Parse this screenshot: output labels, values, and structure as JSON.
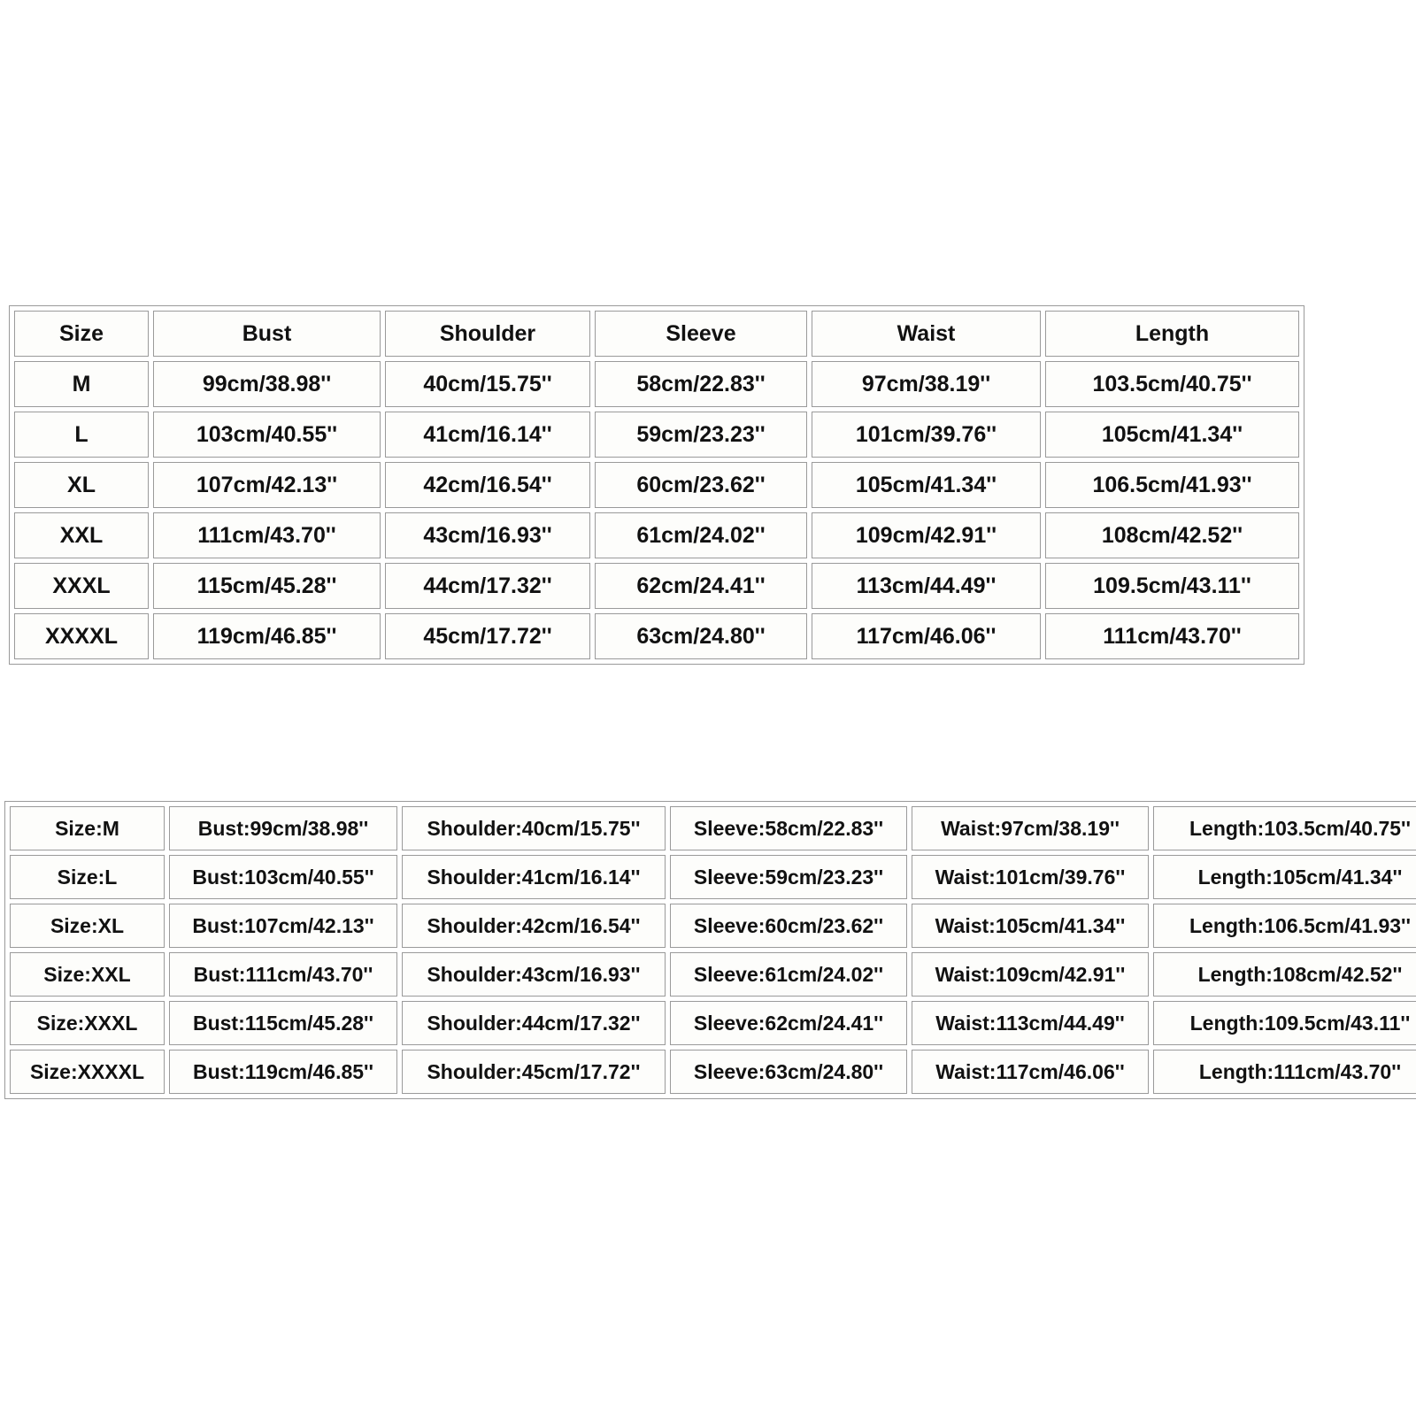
{
  "colors": {
    "page_background": "#ffffff",
    "cell_background": "#fdfdfb",
    "border": "#9a9a9a",
    "text": "#111111"
  },
  "size_table": {
    "headers": [
      "Size",
      "Bust",
      "Shoulder",
      "Sleeve",
      "Waist",
      "Length"
    ],
    "rows": [
      [
        "M",
        "99cm/38.98''",
        "40cm/15.75''",
        "58cm/22.83''",
        "97cm/38.19''",
        "103.5cm/40.75''"
      ],
      [
        "L",
        "103cm/40.55''",
        "41cm/16.14''",
        "59cm/23.23''",
        "101cm/39.76''",
        "105cm/41.34''"
      ],
      [
        "XL",
        "107cm/42.13''",
        "42cm/16.54''",
        "60cm/23.62''",
        "105cm/41.34''",
        "106.5cm/41.93''"
      ],
      [
        "XXL",
        "111cm/43.70''",
        "43cm/16.93''",
        "61cm/24.02''",
        "109cm/42.91''",
        "108cm/42.52''"
      ],
      [
        "XXXL",
        "115cm/45.28''",
        "44cm/17.32''",
        "62cm/24.41''",
        "113cm/44.49''",
        "109.5cm/43.11''"
      ],
      [
        "XXXXL",
        "119cm/46.85''",
        "45cm/17.72''",
        "63cm/24.80''",
        "117cm/46.06''",
        "111cm/43.70''"
      ]
    ]
  },
  "labeled_size_table": {
    "rows": [
      [
        "Size:M",
        "Bust:99cm/38.98''",
        "Shoulder:40cm/15.75''",
        "Sleeve:58cm/22.83''",
        "Waist:97cm/38.19''",
        "Length:103.5cm/40.75''"
      ],
      [
        "Size:L",
        "Bust:103cm/40.55''",
        "Shoulder:41cm/16.14''",
        "Sleeve:59cm/23.23''",
        "Waist:101cm/39.76''",
        "Length:105cm/41.34''"
      ],
      [
        "Size:XL",
        "Bust:107cm/42.13''",
        "Shoulder:42cm/16.54''",
        "Sleeve:60cm/23.62''",
        "Waist:105cm/41.34''",
        "Length:106.5cm/41.93''"
      ],
      [
        "Size:XXL",
        "Bust:111cm/43.70''",
        "Shoulder:43cm/16.93''",
        "Sleeve:61cm/24.02''",
        "Waist:109cm/42.91''",
        "Length:108cm/42.52''"
      ],
      [
        "Size:XXXL",
        "Bust:115cm/45.28''",
        "Shoulder:44cm/17.32''",
        "Sleeve:62cm/24.41''",
        "Waist:113cm/44.49''",
        "Length:109.5cm/43.11''"
      ],
      [
        "Size:XXXXL",
        "Bust:119cm/46.85''",
        "Shoulder:45cm/17.72''",
        "Sleeve:63cm/24.80''",
        "Waist:117cm/46.06''",
        "Length:111cm/43.70''"
      ]
    ]
  }
}
